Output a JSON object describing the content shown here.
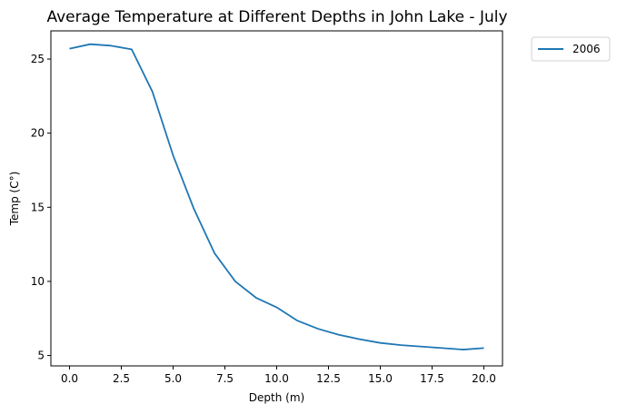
{
  "chart_data": {
    "type": "line",
    "title": "Average Temperature at Different Depths in John Lake - July",
    "xlabel": "Depth (m)",
    "ylabel": "Temp (C°)",
    "xlim": [
      -0.9,
      20.9
    ],
    "ylim": [
      4.3,
      26.9
    ],
    "xticks": [
      0.0,
      2.5,
      5.0,
      7.5,
      10.0,
      12.5,
      15.0,
      17.5,
      20.0
    ],
    "xtick_labels": [
      "0.0",
      "2.5",
      "5.0",
      "7.5",
      "10.0",
      "12.5",
      "15.0",
      "17.5",
      "20.0"
    ],
    "yticks": [
      5,
      10,
      15,
      20,
      25
    ],
    "ytick_labels": [
      "5",
      "10",
      "15",
      "20",
      "25"
    ],
    "grid": false,
    "legend_position": "outside-top-right",
    "series": [
      {
        "name": "2006",
        "color": "#1f77b4",
        "x": [
          0,
          1,
          2,
          3,
          4,
          5,
          6,
          7,
          8,
          9,
          10,
          11,
          12,
          13,
          14,
          15,
          16,
          17,
          18,
          19,
          20
        ],
        "y": [
          25.7,
          26.0,
          25.9,
          25.65,
          22.8,
          18.5,
          14.9,
          11.9,
          10.0,
          8.9,
          8.25,
          7.35,
          6.8,
          6.4,
          6.1,
          5.85,
          5.7,
          5.6,
          5.5,
          5.4,
          5.5
        ]
      }
    ]
  }
}
